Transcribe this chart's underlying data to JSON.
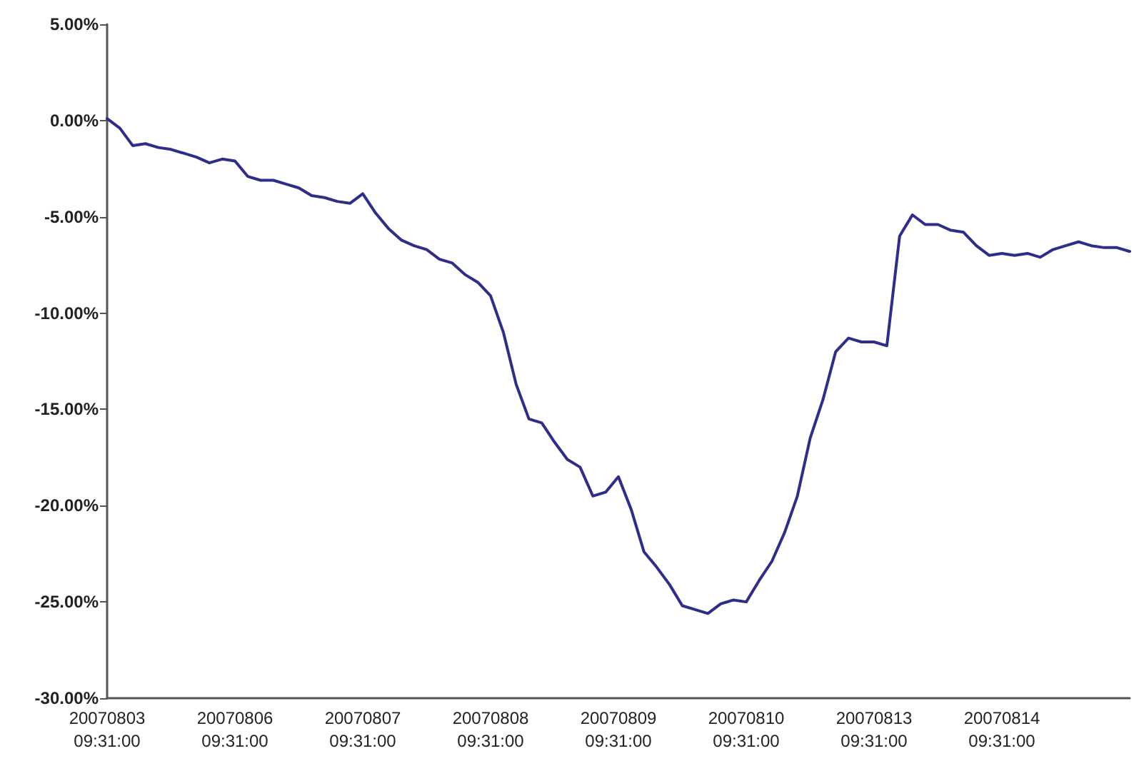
{
  "chart_data": {
    "type": "line",
    "categories": [
      "20070803\n09:31:00",
      null,
      null,
      null,
      null,
      null,
      null,
      null,
      null,
      null,
      "20070806\n09:31:00",
      null,
      null,
      null,
      null,
      null,
      null,
      null,
      null,
      null,
      "20070807\n09:31:00",
      null,
      null,
      null,
      null,
      null,
      null,
      null,
      null,
      null,
      "20070808\n09:31:00",
      null,
      null,
      null,
      null,
      null,
      null,
      null,
      null,
      null,
      "20070809\n09:31:00",
      null,
      null,
      null,
      null,
      null,
      null,
      null,
      null,
      null,
      "20070810\n09:31:00",
      null,
      null,
      null,
      null,
      null,
      null,
      null,
      null,
      null,
      "20070813\n09:31:00",
      null,
      null,
      null,
      null,
      null,
      null,
      null,
      null,
      null,
      "20070814\n09:31:00",
      null,
      null,
      null,
      null,
      null,
      null,
      null,
      null,
      null,
      null
    ],
    "series": [
      {
        "color": "#2e2e8a",
        "values": [
          0.1,
          -0.4,
          -1.3,
          -1.2,
          -1.4,
          -1.5,
          -1.7,
          -1.9,
          -2.2,
          -2.0,
          -2.1,
          -2.9,
          -3.1,
          -3.1,
          -3.3,
          -3.5,
          -3.9,
          -4.0,
          -4.2,
          -4.3,
          -3.8,
          -4.8,
          -5.6,
          -6.2,
          -6.5,
          -6.7,
          -7.2,
          -7.4,
          -8.0,
          -8.4,
          -9.1,
          -11.0,
          -13.7,
          -15.5,
          -15.7,
          -16.7,
          -17.6,
          -18.0,
          -19.5,
          -19.3,
          -18.5,
          -20.2,
          -22.4,
          -23.2,
          -24.1,
          -25.2,
          -25.4,
          -25.6,
          -25.1,
          -24.9,
          -25.0,
          -23.9,
          -22.9,
          -21.4,
          -19.5,
          -16.5,
          -14.5,
          -12.0,
          -11.3,
          -11.5,
          -11.5,
          -11.7,
          -6.0,
          -4.9,
          -5.4,
          -5.4,
          -5.7,
          -5.8,
          -6.5,
          -7.0,
          -6.9,
          -7.0,
          -6.9,
          -7.1,
          -6.7,
          -6.5,
          -6.3,
          -6.5,
          -6.6,
          -6.6,
          -6.8
        ]
      }
    ],
    "ylim": [
      -30,
      5
    ],
    "yticks": [
      {
        "value": -30,
        "label": "-30.00%"
      },
      {
        "value": -25,
        "label": "-25.00%"
      },
      {
        "value": -20,
        "label": "-20.00%"
      },
      {
        "value": -15,
        "label": "-15.00%"
      },
      {
        "value": -10,
        "label": "-10.00%"
      },
      {
        "value": -5,
        "label": "-5.00%"
      },
      {
        "value": 0,
        "label": "0.00%"
      },
      {
        "value": 5,
        "label": "5.00%"
      }
    ],
    "grid": false,
    "marker": "none",
    "line_style": "solid"
  }
}
